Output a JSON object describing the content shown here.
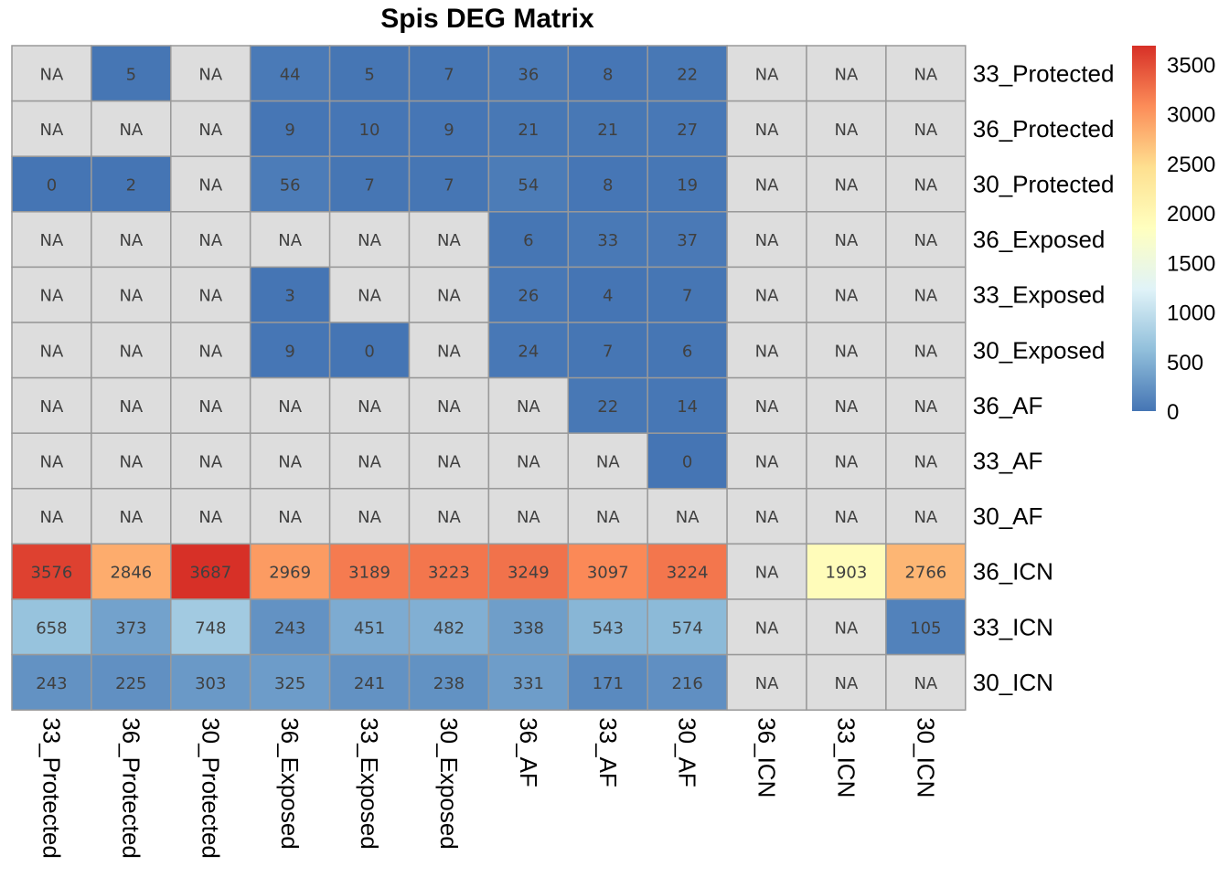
{
  "chart_data": {
    "type": "heatmap",
    "title": "Spis DEG Matrix",
    "rows": [
      "33_Protected",
      "36_Protected",
      "30_Protected",
      "36_Exposed",
      "33_Exposed",
      "30_Exposed",
      "36_AF",
      "33_AF",
      "30_AF",
      "36_ICN",
      "33_ICN",
      "30_ICN"
    ],
    "columns": [
      "33_Protected",
      "36_Protected",
      "30_Protected",
      "36_Exposed",
      "33_Exposed",
      "30_Exposed",
      "36_AF",
      "33_AF",
      "30_AF",
      "36_ICN",
      "33_ICN",
      "30_ICN"
    ],
    "values": [
      [
        null,
        5,
        null,
        44,
        5,
        7,
        36,
        8,
        22,
        null,
        null,
        null
      ],
      [
        null,
        null,
        null,
        9,
        10,
        9,
        21,
        21,
        27,
        null,
        null,
        null
      ],
      [
        0,
        2,
        null,
        56,
        7,
        7,
        54,
        8,
        19,
        null,
        null,
        null
      ],
      [
        null,
        null,
        null,
        null,
        null,
        null,
        6,
        33,
        37,
        null,
        null,
        null
      ],
      [
        null,
        null,
        null,
        3,
        null,
        null,
        26,
        4,
        7,
        null,
        null,
        null
      ],
      [
        null,
        null,
        null,
        9,
        0,
        null,
        24,
        7,
        6,
        null,
        null,
        null
      ],
      [
        null,
        null,
        null,
        null,
        null,
        null,
        null,
        22,
        14,
        null,
        null,
        null
      ],
      [
        null,
        null,
        null,
        null,
        null,
        null,
        null,
        null,
        0,
        null,
        null,
        null
      ],
      [
        null,
        null,
        null,
        null,
        null,
        null,
        null,
        null,
        null,
        null,
        null,
        null
      ],
      [
        3576,
        2846,
        3687,
        2969,
        3189,
        3223,
        3249,
        3097,
        3224,
        null,
        1903,
        2766
      ],
      [
        658,
        373,
        748,
        243,
        451,
        482,
        338,
        543,
        574,
        null,
        null,
        105
      ],
      [
        243,
        225,
        303,
        325,
        241,
        238,
        331,
        171,
        216,
        null,
        null,
        null
      ]
    ],
    "na_label": "NA",
    "na_color": "#DDDDDD",
    "border_color": "#999999",
    "color_scale": [
      "#4575B4",
      "#91BFDB",
      "#E0F3F8",
      "#FFFFBF",
      "#FEE090",
      "#FC8D59",
      "#D73027"
    ],
    "value_range": [
      0,
      3687
    ],
    "legend_ticks": [
      "0",
      "500",
      "1000",
      "1500",
      "2000",
      "2500",
      "3000",
      "3500"
    ],
    "legend_position": "right"
  }
}
